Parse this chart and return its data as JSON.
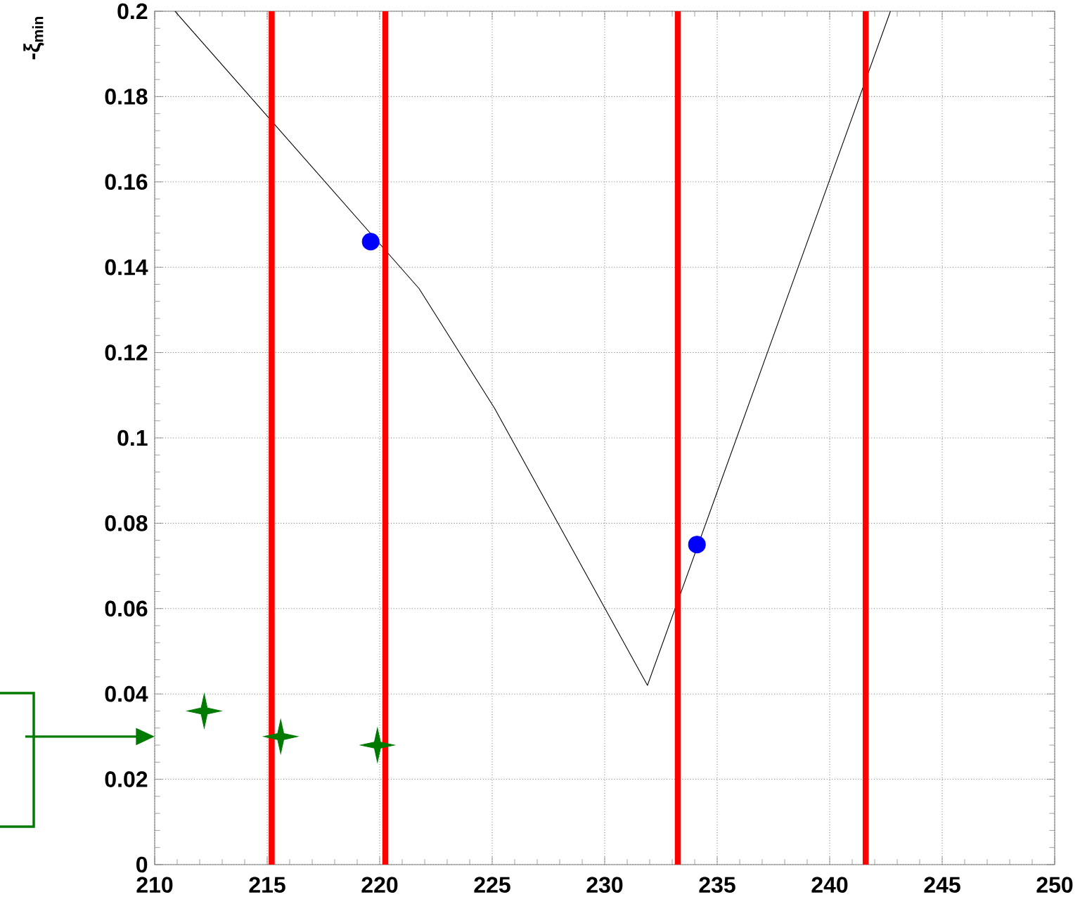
{
  "chart_data": {
    "type": "line",
    "ylabel": "-ξ$_{min}$",
    "xlim": [
      210,
      250
    ],
    "ylim": [
      0,
      0.2
    ],
    "xticks": [
      210,
      215,
      220,
      225,
      230,
      235,
      240,
      245,
      250
    ],
    "yticks": [
      0,
      0.02,
      0.04,
      0.06,
      0.08,
      0.1,
      0.12,
      0.14,
      0.16,
      0.18,
      0.2
    ],
    "grid": true,
    "series": [
      {
        "color": "#000000",
        "marker": "none",
        "line_style": "solid",
        "x": [
          210.9,
          221.75,
          225.1,
          231.9,
          242.7
        ],
        "values": [
          0.2,
          0.135,
          0.107,
          0.042,
          0.2
        ]
      },
      {
        "type": "scatter",
        "color": "#0000ff",
        "marker": "circle",
        "x": [
          219.6,
          234.1
        ],
        "values": [
          0.146,
          0.075
        ]
      },
      {
        "type": "scatter",
        "color": "#007a00",
        "marker": "star",
        "x": [
          212.2,
          215.6,
          219.9
        ],
        "values": [
          0.036,
          0.03,
          0.028
        ]
      }
    ],
    "ref_lines": [
      {
        "axis": "x",
        "value": 215.2,
        "color": "#ff0000"
      },
      {
        "axis": "x",
        "value": 220.25,
        "color": "#ff0000"
      },
      {
        "axis": "x",
        "value": 233.25,
        "color": "#ff0000"
      },
      {
        "axis": "x",
        "value": 241.6,
        "color": "#ff0000"
      }
    ]
  }
}
